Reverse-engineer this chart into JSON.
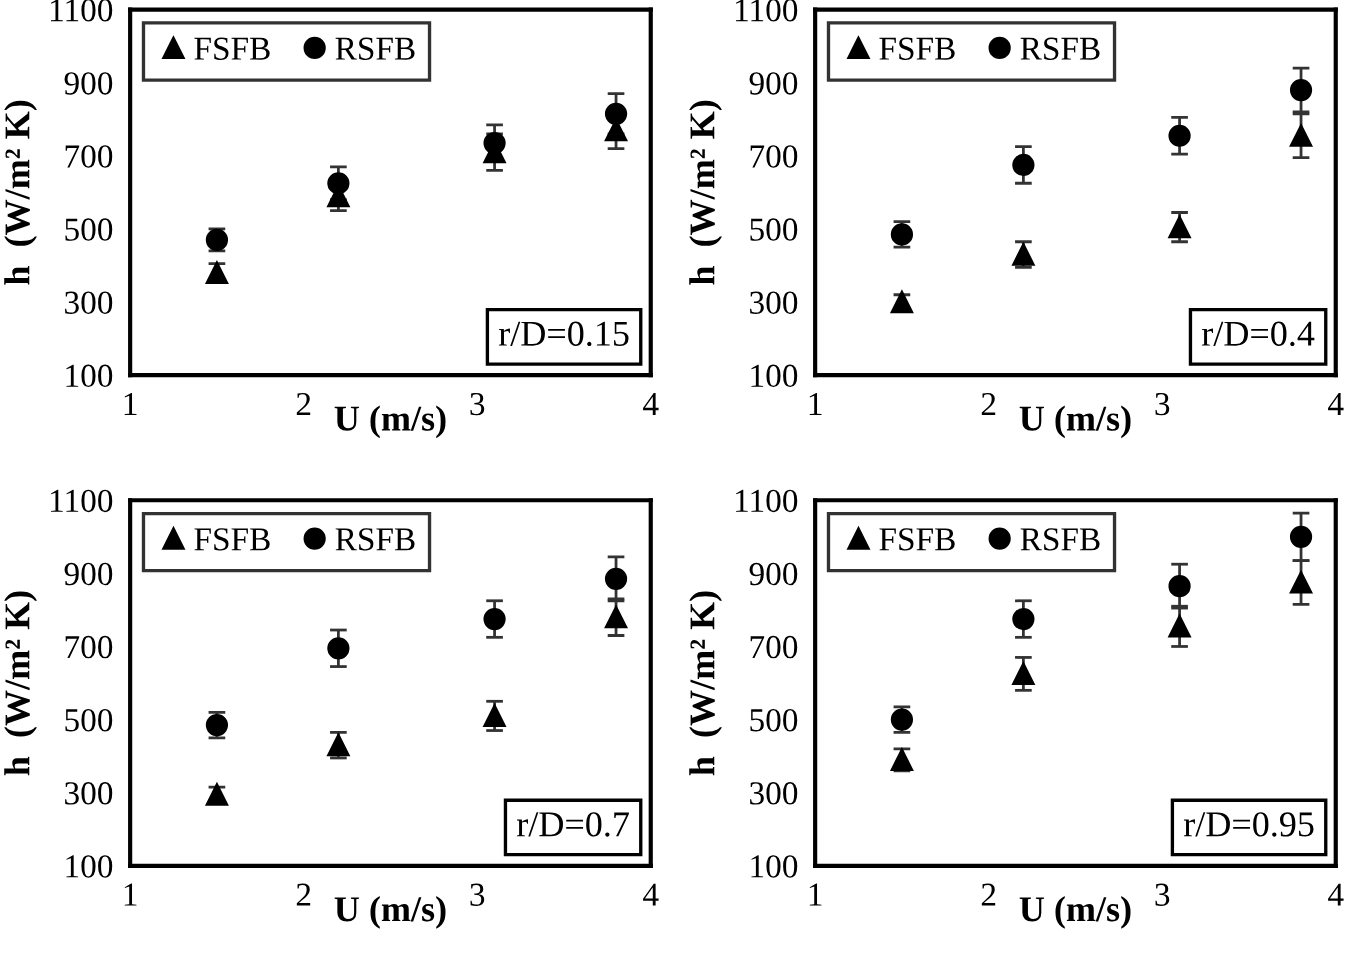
{
  "chart_data": [
    {
      "type": "scatter",
      "xlabel": "U (m/s)",
      "ylabel": "h  (W/m² K)",
      "xlim": [
        1,
        4
      ],
      "xticks": [
        1,
        2,
        3,
        4
      ],
      "ylim": [
        100,
        1100
      ],
      "yticks": [
        100,
        300,
        500,
        700,
        900,
        1100
      ],
      "grid": false,
      "legend": "top left",
      "annotations": [
        "r/D=0.15"
      ],
      "x": [
        1.5,
        2.2,
        3.1,
        3.8
      ],
      "series": [
        {
          "name": "FSFB",
          "color": "#000000",
          "marker": "triangle",
          "values": [
            380,
            590,
            710,
            770
          ],
          "errors": [
            25,
            40,
            50,
            50
          ]
        },
        {
          "name": "RSFB",
          "color": "#000000",
          "marker": "circle",
          "values": [
            470,
            625,
            735,
            815
          ],
          "errors": [
            30,
            45,
            50,
            55
          ]
        }
      ]
    },
    {
      "type": "scatter",
      "xlabel": "U (m/s)",
      "ylabel": "h  (W/m² K)",
      "xlim": [
        1,
        4
      ],
      "xticks": [
        1,
        2,
        3,
        4
      ],
      "ylim": [
        100,
        1100
      ],
      "yticks": [
        100,
        300,
        500,
        700,
        900,
        1100
      ],
      "grid": false,
      "legend": "top left",
      "annotations": [
        "r/D=0.4"
      ],
      "x": [
        1.5,
        2.2,
        3.1,
        3.8
      ],
      "series": [
        {
          "name": "FSFB",
          "color": "#000000",
          "marker": "triangle",
          "values": [
            300,
            430,
            505,
            755
          ],
          "errors": [
            20,
            35,
            40,
            60
          ]
        },
        {
          "name": "RSFB",
          "color": "#000000",
          "marker": "circle",
          "values": [
            485,
            675,
            755,
            880
          ],
          "errors": [
            35,
            50,
            50,
            60
          ]
        }
      ]
    },
    {
      "type": "scatter",
      "xlabel": "U (m/s)",
      "ylabel": "h  (W/m² K)",
      "xlim": [
        1,
        4
      ],
      "xticks": [
        1,
        2,
        3,
        4
      ],
      "ylim": [
        100,
        1100
      ],
      "yticks": [
        100,
        300,
        500,
        700,
        900,
        1100
      ],
      "grid": false,
      "legend": "top left",
      "annotations": [
        "r/D=0.7"
      ],
      "x": [
        1.5,
        2.2,
        3.1,
        3.8
      ],
      "series": [
        {
          "name": "FSFB",
          "color": "#000000",
          "marker": "triangle",
          "values": [
            295,
            430,
            510,
            780
          ],
          "errors": [
            20,
            35,
            40,
            50
          ]
        },
        {
          "name": "RSFB",
          "color": "#000000",
          "marker": "circle",
          "values": [
            485,
            695,
            775,
            885
          ],
          "errors": [
            35,
            50,
            50,
            60
          ]
        }
      ]
    },
    {
      "type": "scatter",
      "xlabel": "U (m/s)",
      "ylabel": "h  (W/m² K)",
      "xlim": [
        1,
        4
      ],
      "xticks": [
        1,
        2,
        3,
        4
      ],
      "ylim": [
        100,
        1100
      ],
      "yticks": [
        100,
        300,
        500,
        700,
        900,
        1100
      ],
      "grid": false,
      "legend": "top left",
      "annotations": [
        "r/D=0.95"
      ],
      "x": [
        1.5,
        2.2,
        3.1,
        3.8
      ],
      "series": [
        {
          "name": "FSFB",
          "color": "#000000",
          "marker": "triangle",
          "values": [
            390,
            625,
            755,
            875
          ],
          "errors": [
            30,
            45,
            55,
            60
          ]
        },
        {
          "name": "RSFB",
          "color": "#000000",
          "marker": "circle",
          "values": [
            500,
            775,
            865,
            1000
          ],
          "errors": [
            35,
            50,
            60,
            65
          ]
        }
      ]
    }
  ]
}
